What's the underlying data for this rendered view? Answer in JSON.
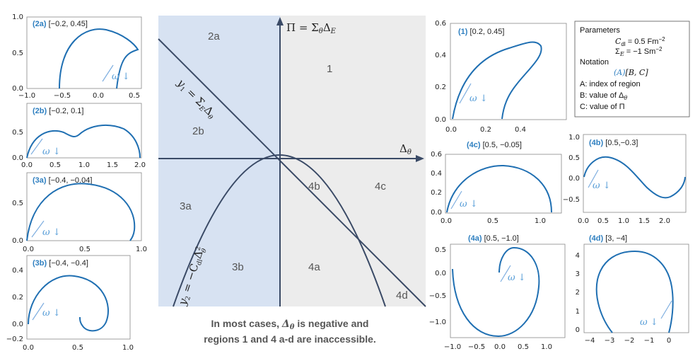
{
  "panels": [
    {
      "id": "2a",
      "label": "(2a)",
      "params": "[−0.2, 0.45]",
      "xticks": [
        "−1.0",
        "−0.5",
        "0.0",
        "0.5"
      ],
      "yticks": [
        "0.0",
        "0.5",
        "1.0"
      ]
    },
    {
      "id": "2b",
      "label": "(2b)",
      "params": "[−0.2, 0.1]",
      "xticks": [
        "0.0",
        "0.5",
        "1.0",
        "1.5",
        "2.0"
      ],
      "yticks": [
        "0.0",
        "0.5"
      ]
    },
    {
      "id": "3a",
      "label": "(3a)",
      "params": "[−0.4, −0.04]",
      "xticks": [
        "0.0",
        "0.5",
        "1.0"
      ],
      "yticks": [
        "0.0",
        "0.5"
      ]
    },
    {
      "id": "3b",
      "label": "(3b)",
      "params": "[−0.4, −0.4]",
      "xticks": [
        "0.0",
        "0.5",
        "1.0"
      ],
      "yticks": [
        "−0.2",
        "0.0",
        "0.2",
        "0.4"
      ]
    },
    {
      "id": "1",
      "label": "(1)",
      "params": "[0.2, 0.45]",
      "xticks": [
        "0.0",
        "0.2",
        "0.4"
      ],
      "yticks": [
        "0.0",
        "0.2",
        "0.4",
        "0.6"
      ]
    },
    {
      "id": "4c",
      "label": "(4c)",
      "params": "[0.5, −0.05]",
      "xticks": [
        "0.0",
        "0.5",
        "1.0"
      ],
      "yticks": [
        "0.0",
        "0.2",
        "0.4",
        "0.6"
      ]
    },
    {
      "id": "4b",
      "label": "(4b)",
      "params": "[0.5,−0.3]",
      "xticks": [
        "0.0",
        "0.5",
        "1.0",
        "1.5",
        "2.0"
      ],
      "yticks": [
        "−0.5",
        "0.0",
        "0.5",
        "1.0"
      ]
    },
    {
      "id": "4a",
      "label": "(4a)",
      "params": "[0.5, −1.0]",
      "xticks": [
        "−1.0",
        "−0.5",
        "0.0",
        "0.5",
        "1.0"
      ],
      "yticks": [
        "−1.0",
        "−0.5",
        "0.0",
        "0.5"
      ]
    },
    {
      "id": "4d",
      "label": "(4d)",
      "params": "[3, −4]",
      "xticks": [
        "−4",
        "−3",
        "−2",
        "−1",
        "0"
      ],
      "yticks": [
        "0",
        "1",
        "2",
        "3",
        "4"
      ]
    }
  ],
  "omega_label": "ω ↓",
  "diagram": {
    "regions": [
      "2a",
      "1",
      "2b",
      "3a",
      "3b",
      "4b",
      "4c",
      "4a",
      "4d"
    ],
    "pi_axis": "Π = Σ",
    "pi_sub1": "θ",
    "pi_mid": "Δ",
    "pi_sub2": "E",
    "delta_axis": "Δ",
    "delta_sub": "θ",
    "line_y1": "y",
    "line_y1_rest": " = Σ",
    "line_y1_end": "Δ",
    "curve_y2": "y",
    "curve_y2_rest": " = −C",
    "curve_y2_end": "Δ"
  },
  "note": {
    "line1_pre": "In most cases, ",
    "line1_sym": "Δ",
    "line1_sub": "θ",
    "line1_post": " is negative and",
    "line2": "regions 1 and 4 a-d are inaccessible."
  },
  "params_box": {
    "title": "Parameters",
    "cdl": "C",
    "cdl_sub": "dl",
    "cdl_val": " = 0.5 Fm",
    "sigma": "Σ",
    "sigma_sub": "E",
    "sigma_val": " = −1 Sm",
    "exp": "−2",
    "notation": "Notation",
    "notation_fmt_a": "(A)",
    "notation_fmt_rest": "[B, C]",
    "a_desc": "A: index of region",
    "b_desc": "B: value of Δ",
    "b_sub": "θ",
    "c_desc": "C: value of Π"
  }
}
